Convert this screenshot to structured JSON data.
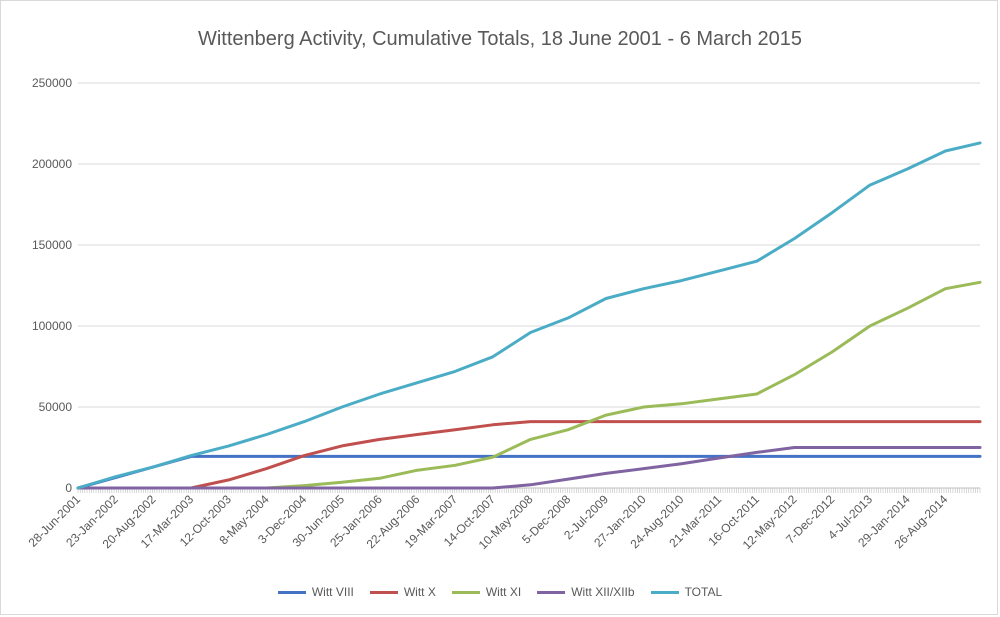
{
  "chart_data": {
    "type": "line",
    "title": "Wittenberg Activity, Cumulative Totals, 18 June 2001 - 6 March 2015",
    "xlabel": "",
    "ylabel": "",
    "ylim": [
      0,
      250000
    ],
    "yticks": [
      "0",
      "50000",
      "100000",
      "150000",
      "200000",
      "250000"
    ],
    "xticks": [
      "28-Jun-2001",
      "23-Jan-2002",
      "20-Aug-2002",
      "17-Mar-2003",
      "12-Oct-2003",
      "8-May-2004",
      "3-Dec-2004",
      "30-Jun-2005",
      "25-Jan-2006",
      "22-Aug-2006",
      "19-Mar-2007",
      "14-Oct-2007",
      "10-May-2008",
      "5-Dec-2008",
      "2-Jul-2009",
      "27-Jan-2010",
      "24-Aug-2010",
      "21-Mar-2011",
      "16-Oct-2011",
      "12-May-2012",
      "7-Dec-2012",
      "4-Jul-2013",
      "29-Jan-2014",
      "26-Aug-2014"
    ],
    "grid": true,
    "legend_position": "bottom",
    "series": [
      {
        "name": "Witt VIII",
        "color": "#4472c4",
        "points": [
          [
            "28-Jun-2001",
            0
          ],
          [
            "17-Mar-2003",
            19500
          ],
          [
            "6-Mar-2015",
            19500
          ]
        ]
      },
      {
        "name": "Witt X",
        "color": "#c0504d",
        "points": [
          [
            "28-Jun-2001",
            0
          ],
          [
            "17-Mar-2003",
            0
          ],
          [
            "12-Oct-2003",
            5000
          ],
          [
            "8-May-2004",
            12000
          ],
          [
            "3-Dec-2004",
            20000
          ],
          [
            "30-Jun-2005",
            26000
          ],
          [
            "25-Jan-2006",
            30000
          ],
          [
            "22-Aug-2006",
            33000
          ],
          [
            "19-Mar-2007",
            36000
          ],
          [
            "14-Oct-2007",
            39000
          ],
          [
            "10-May-2008",
            41000
          ],
          [
            "6-Mar-2015",
            41000
          ]
        ]
      },
      {
        "name": "Witt XI",
        "color": "#9bbb59",
        "points": [
          [
            "28-Jun-2001",
            0
          ],
          [
            "8-May-2004",
            0
          ],
          [
            "3-Dec-2004",
            1500
          ],
          [
            "30-Jun-2005",
            3500
          ],
          [
            "25-Jan-2006",
            6000
          ],
          [
            "22-Aug-2006",
            11000
          ],
          [
            "19-Mar-2007",
            14000
          ],
          [
            "14-Oct-2007",
            19000
          ],
          [
            "10-May-2008",
            30000
          ],
          [
            "5-Dec-2008",
            36000
          ],
          [
            "2-Jul-2009",
            45000
          ],
          [
            "27-Jan-2010",
            50000
          ],
          [
            "24-Aug-2010",
            52000
          ],
          [
            "21-Mar-2011",
            55000
          ],
          [
            "16-Oct-2011",
            58000
          ],
          [
            "12-May-2012",
            70000
          ],
          [
            "7-Dec-2012",
            84000
          ],
          [
            "4-Jul-2013",
            100000
          ],
          [
            "29-Jan-2014",
            111000
          ],
          [
            "26-Aug-2014",
            123000
          ],
          [
            "6-Mar-2015",
            127000
          ]
        ]
      },
      {
        "name": "Witt XII/XIIb",
        "color": "#8064a2",
        "points": [
          [
            "28-Jun-2001",
            0
          ],
          [
            "14-Oct-2007",
            0
          ],
          [
            "10-May-2008",
            2000
          ],
          [
            "5-Dec-2008",
            5500
          ],
          [
            "2-Jul-2009",
            9000
          ],
          [
            "27-Jan-2010",
            12000
          ],
          [
            "24-Aug-2010",
            15000
          ],
          [
            "21-Mar-2011",
            18500
          ],
          [
            "16-Oct-2011",
            22000
          ],
          [
            "12-May-2012",
            25000
          ],
          [
            "6-Mar-2015",
            25000
          ]
        ]
      },
      {
        "name": "TOTAL",
        "color": "#4bacc6",
        "points": [
          [
            "28-Jun-2001",
            0
          ],
          [
            "23-Jan-2002",
            7000
          ],
          [
            "20-Aug-2002",
            13000
          ],
          [
            "17-Mar-2003",
            20000
          ],
          [
            "12-Oct-2003",
            26000
          ],
          [
            "8-May-2004",
            33000
          ],
          [
            "3-Dec-2004",
            41000
          ],
          [
            "30-Jun-2005",
            50000
          ],
          [
            "25-Jan-2006",
            58000
          ],
          [
            "22-Aug-2006",
            65000
          ],
          [
            "19-Mar-2007",
            72000
          ],
          [
            "14-Oct-2007",
            81000
          ],
          [
            "10-May-2008",
            96000
          ],
          [
            "5-Dec-2008",
            105000
          ],
          [
            "2-Jul-2009",
            117000
          ],
          [
            "27-Jan-2010",
            123000
          ],
          [
            "24-Aug-2010",
            128000
          ],
          [
            "21-Mar-2011",
            134000
          ],
          [
            "16-Oct-2011",
            140000
          ],
          [
            "12-May-2012",
            154000
          ],
          [
            "7-Dec-2012",
            170000
          ],
          [
            "4-Jul-2013",
            187000
          ],
          [
            "29-Jan-2014",
            197000
          ],
          [
            "26-Aug-2014",
            208000
          ],
          [
            "6-Mar-2015",
            213000
          ]
        ]
      }
    ]
  }
}
